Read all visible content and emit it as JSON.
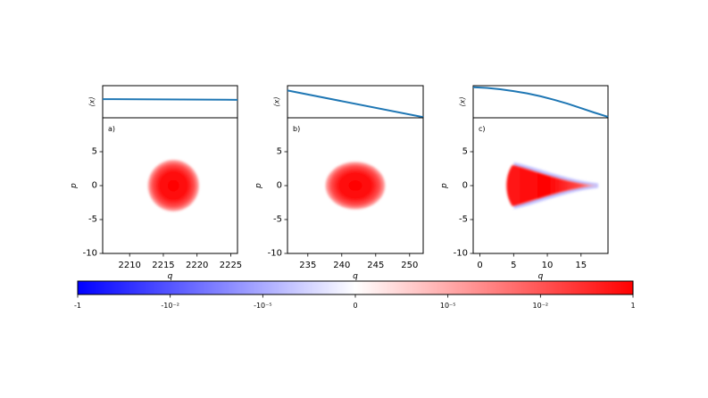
{
  "chart_data": [
    {
      "type": "line",
      "panel": "a",
      "ylabel": "⟨x⟩",
      "xlim": [
        2206,
        2226
      ],
      "x": [
        2206,
        2226
      ],
      "y": [
        0.58,
        0.56
      ],
      "ylim": [
        0,
        1
      ],
      "grid": false
    },
    {
      "type": "heatmap",
      "panel": "a",
      "label": "a)",
      "xlabel": "q",
      "ylabel": "p",
      "xlim": [
        2206,
        2226
      ],
      "ylim": [
        -10,
        10
      ],
      "xticks": [
        "2210",
        "2215",
        "2220",
        "2225"
      ],
      "xtick_values": [
        2210,
        2215,
        2220,
        2225
      ],
      "yticks": [
        "-10",
        "-5",
        "0",
        "5"
      ],
      "ytick_values": [
        -10,
        -5,
        0,
        5
      ],
      "blob": {
        "shape": "disc",
        "center": [
          2216.5,
          0
        ],
        "radius_q": 3.8,
        "radius_p": 3.8
      },
      "grid": false
    },
    {
      "type": "line",
      "panel": "b",
      "ylabel": "⟨x⟩",
      "xlim": [
        232,
        252
      ],
      "x": [
        232,
        252
      ],
      "y": [
        0.85,
        0.02
      ],
      "ylim": [
        0,
        1
      ],
      "grid": false
    },
    {
      "type": "heatmap",
      "panel": "b",
      "label": "b)",
      "xlabel": "q",
      "ylabel": "p",
      "xlim": [
        232,
        252
      ],
      "ylim": [
        -10,
        10
      ],
      "xticks": [
        "235",
        "240",
        "245",
        "250"
      ],
      "xtick_values": [
        235,
        240,
        245,
        250
      ],
      "yticks": [
        "-10",
        "-5",
        "0",
        "5"
      ],
      "ytick_values": [
        -10,
        -5,
        0,
        5
      ],
      "blob": {
        "shape": "ellipse",
        "center": [
          242,
          0
        ],
        "radius_q": 4.4,
        "radius_p": 3.5
      },
      "grid": false
    },
    {
      "type": "line",
      "panel": "c",
      "ylabel": "⟨x⟩",
      "xlim": [
        -1,
        19
      ],
      "x": [
        -1,
        1,
        3,
        5,
        7,
        9,
        11,
        13,
        15,
        17,
        19
      ],
      "y": [
        0.95,
        0.93,
        0.89,
        0.83,
        0.76,
        0.67,
        0.56,
        0.44,
        0.3,
        0.16,
        0.03
      ],
      "ylim": [
        0,
        1
      ],
      "grid": false
    },
    {
      "type": "heatmap",
      "panel": "c",
      "label": "c)",
      "xlabel": "q",
      "ylabel": "p",
      "xlim": [
        -1,
        19
      ],
      "ylim": [
        -10,
        10
      ],
      "xticks": [
        "0",
        "5",
        "10",
        "15"
      ],
      "xtick_values": [
        0,
        5,
        10,
        15
      ],
      "yticks": [
        "-10",
        "-5",
        "0",
        "5"
      ],
      "ytick_values": [
        -10,
        -5,
        0,
        5
      ],
      "blob": {
        "shape": "wedge",
        "start_q": 4.3,
        "end_q": 17.5,
        "half_height_p": 3.2
      },
      "grid": false
    }
  ],
  "colorbar": {
    "scale": "symlog",
    "ticks": [
      "-1",
      "-10⁻²",
      "-10⁻⁵",
      "0",
      "10⁻⁵",
      "10⁻²",
      "1"
    ],
    "colors": {
      "negative": "#0000ff",
      "zero": "#ffffff",
      "positive": "#ff0000"
    }
  },
  "colors": {
    "line": "#1f77b4"
  }
}
